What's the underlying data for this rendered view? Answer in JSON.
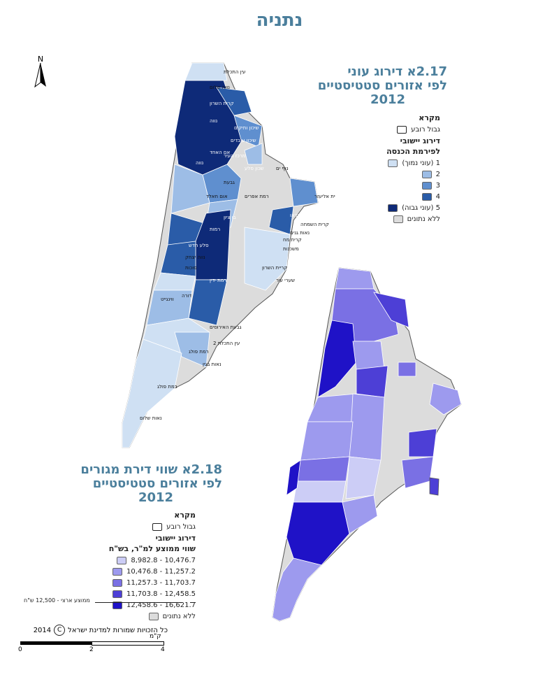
{
  "page_title": "נתניה",
  "north_arrow": {
    "icon": "north-arrow-icon",
    "label": "N"
  },
  "map1": {
    "title_line1": "2.17א  דירוג עוני",
    "title_line2": "לפי אזורים סטטיסטיים",
    "title_line3": "2012",
    "legend": {
      "heading": "מקרא",
      "boundary_label": "גבול רובע",
      "ranking_heading": "דירוג יישובי",
      "income_heading": "לפירמת הכנסה",
      "classes": [
        {
          "label": "1 (עוני נמוך)",
          "color": "#cfe0f3"
        },
        {
          "label": "2",
          "color": "#9dbde6"
        },
        {
          "label": "3",
          "color": "#5f8fcf"
        },
        {
          "label": "4",
          "color": "#2a5ca8"
        },
        {
          "label": "5 (עוני גבוה)",
          "color": "#0e2a78"
        },
        {
          "label": "ללא נתונים",
          "color": "#dcdcdc"
        }
      ]
    },
    "labels": [
      "עין התכלת",
      "נווה שלום",
      "קרית השרון",
      "פרדס הגדוד",
      "רמת הרצל",
      "נווה",
      "שיכון ותיקים",
      "שיכון עובדים",
      "אם האחד",
      "מרכז העיר",
      "נווה",
      "שכון סלע",
      "נוף ים",
      "גבעת",
      "רמת אפרים",
      "אזור תעשייה קריית אליעזר",
      "אום חאלד",
      "קרית נורדאו",
      "קרית השמחה",
      "בן ציון",
      "רמות",
      "נאות גנים",
      "קרית מח",
      "משכנות",
      "סלע חדש",
      "נווה יצחק",
      "סוכות",
      "קריית השרון",
      "שערי עיר",
      "רמת ידין",
      "דורה",
      "ווינגייט",
      "גבעת האירוסים",
      "רמת פולג",
      "עין התכלת 2",
      "נאות בגין",
      "רמת פולג",
      "נאות שלום"
    ]
  },
  "map2": {
    "title_line1": "2.18א  שווי דירת מגורים",
    "title_line2": "לפי אזורים סטטיסטיים",
    "title_line3": "2012",
    "legend": {
      "heading": "מקרא",
      "boundary_label": "גבול רובע",
      "ranking_heading": "דירוג יישובי",
      "value_heading": "שווי ממוצע למ\"ר, בש\"ח",
      "classes": [
        {
          "label": "10,476.7 - 8,982.8",
          "color": "#cccdf6"
        },
        {
          "label": "11,257.2 - 10,476.8",
          "color": "#9d9aee"
        },
        {
          "label": "11,703.7 - 11,257.3",
          "color": "#7a70e4"
        },
        {
          "label": "12,458.5 - 11,703.8",
          "color": "#4d3fd6"
        },
        {
          "label": "16,621.7 - 12,458.6",
          "color": "#1f12c7"
        },
        {
          "label": "ללא נתונים",
          "color": "#dcdcdc"
        }
      ],
      "average_note": "ממוצע ארצי - 12,500 ש\"ח"
    }
  },
  "copyright": "כל הזכויות שמורות למדינת ישראל",
  "copyright_year": "2014",
  "scale_bar": {
    "unit": "ק\"מ",
    "ticks": [
      "0",
      "2",
      "4"
    ]
  }
}
